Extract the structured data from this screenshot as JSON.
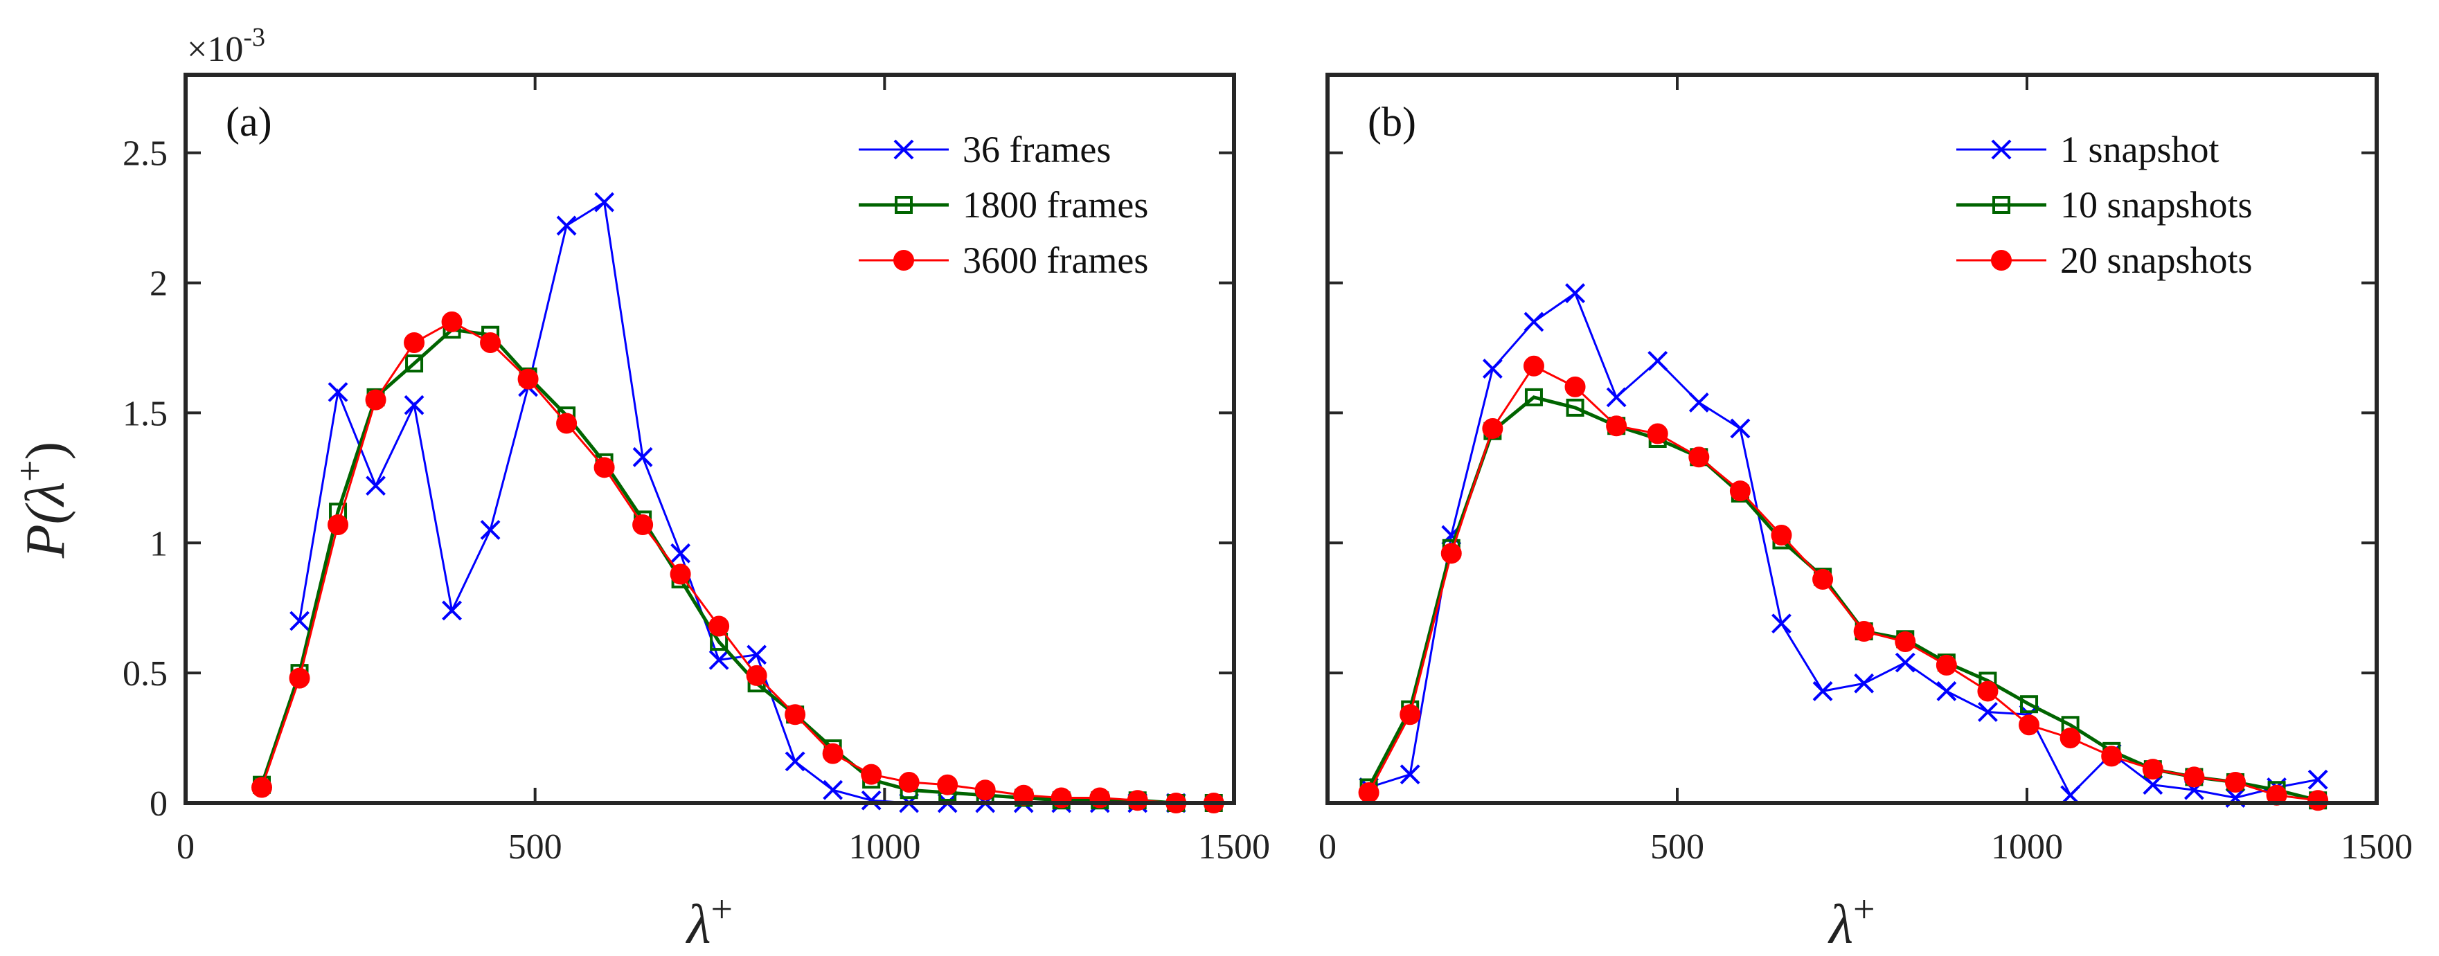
{
  "chart_data": [
    {
      "type": "line",
      "panel_label": "(a)",
      "exponent_label": "×10",
      "exponent_power": "-3",
      "xlabel": "λ",
      "xlabel_sup": "+",
      "ylabel": "P(λ",
      "ylabel_sup": "+",
      "ylabel_close": ")",
      "xlim": [
        0,
        1500
      ],
      "ylim": [
        0,
        2.8
      ],
      "xticks": [
        0,
        500,
        1000,
        1500
      ],
      "xtick_labels": [
        "0",
        "500",
        "1000",
        "1500"
      ],
      "yticks": [
        0,
        0.5,
        1,
        1.5,
        2,
        2.5
      ],
      "ytick_labels": [
        "0",
        "0.5",
        "1",
        "1.5",
        "2",
        "2.5"
      ],
      "y_unit_scale": "1e-3",
      "legend_position": "top-right",
      "series": [
        {
          "name": "36 frames",
          "color": "#0000ff",
          "marker": "x",
          "x": [
            163,
            218,
            272,
            327,
            381,
            436,
            490,
            545,
            599,
            654,
            708,
            763,
            817,
            872,
            926,
            981,
            1035,
            1090,
            1144,
            1199,
            1253,
            1308,
            1362,
            1417
          ],
          "y": [
            0.7,
            1.58,
            1.22,
            1.53,
            0.74,
            1.05,
            1.6,
            2.22,
            2.31,
            1.33,
            0.96,
            0.55,
            0.57,
            0.16,
            0.05,
            0.01,
            0.0,
            0.0,
            0.0,
            0.0,
            0.0,
            0.0,
            0.0,
            0.0
          ]
        },
        {
          "name": "1800 frames",
          "color": "#006400",
          "marker": "square",
          "x": [
            109,
            163,
            218,
            272,
            327,
            381,
            436,
            490,
            545,
            599,
            654,
            708,
            763,
            817,
            872,
            926,
            981,
            1035,
            1090,
            1144,
            1199,
            1253,
            1308,
            1362,
            1417,
            1471
          ],
          "y": [
            0.07,
            0.5,
            1.12,
            1.56,
            1.69,
            1.82,
            1.8,
            1.64,
            1.49,
            1.31,
            1.09,
            0.86,
            0.62,
            0.46,
            0.34,
            0.21,
            0.09,
            0.05,
            0.04,
            0.03,
            0.02,
            0.01,
            0.01,
            0.01,
            0.0,
            0.0
          ]
        },
        {
          "name": "3600 frames",
          "color": "#ff0000",
          "marker": "circle",
          "x": [
            109,
            163,
            218,
            272,
            327,
            381,
            436,
            490,
            545,
            599,
            654,
            708,
            763,
            817,
            872,
            926,
            981,
            1035,
            1090,
            1144,
            1199,
            1253,
            1308,
            1362,
            1417,
            1471
          ],
          "y": [
            0.06,
            0.48,
            1.07,
            1.55,
            1.77,
            1.85,
            1.77,
            1.63,
            1.46,
            1.29,
            1.07,
            0.88,
            0.68,
            0.49,
            0.34,
            0.19,
            0.11,
            0.08,
            0.07,
            0.05,
            0.03,
            0.02,
            0.02,
            0.01,
            0.0,
            0.0
          ]
        }
      ]
    },
    {
      "type": "line",
      "panel_label": "(b)",
      "xlabel": "λ",
      "xlabel_sup": "+",
      "xlim": [
        0,
        1500
      ],
      "ylim": [
        0,
        2.8
      ],
      "xticks": [
        0,
        500,
        1000,
        1500
      ],
      "xtick_labels": [
        "0",
        "500",
        "1000",
        "1500"
      ],
      "yticks": [
        0,
        0.5,
        1,
        1.5,
        2,
        2.5
      ],
      "legend_position": "top-right",
      "series": [
        {
          "name": "1 snapshot",
          "color": "#0000ff",
          "marker": "x",
          "x": [
            59,
            118,
            177,
            236,
            295,
            354,
            413,
            472,
            531,
            590,
            649,
            708,
            767,
            826,
            885,
            944,
            1003,
            1062,
            1121,
            1180,
            1239,
            1298,
            1357,
            1416
          ],
          "y": [
            0.06,
            0.11,
            1.03,
            1.67,
            1.85,
            1.96,
            1.56,
            1.7,
            1.54,
            1.44,
            0.69,
            0.43,
            0.46,
            0.54,
            0.43,
            0.35,
            0.34,
            0.03,
            0.19,
            0.07,
            0.05,
            0.02,
            0.06,
            0.09
          ]
        },
        {
          "name": "10 snapshots",
          "color": "#006400",
          "marker": "square",
          "x": [
            59,
            118,
            177,
            236,
            295,
            354,
            413,
            472,
            531,
            590,
            649,
            708,
            767,
            826,
            885,
            944,
            1003,
            1062,
            1121,
            1180,
            1239,
            1298,
            1357,
            1416
          ],
          "y": [
            0.06,
            0.36,
            0.98,
            1.43,
            1.56,
            1.52,
            1.45,
            1.4,
            1.33,
            1.19,
            1.01,
            0.87,
            0.66,
            0.63,
            0.54,
            0.47,
            0.38,
            0.3,
            0.2,
            0.13,
            0.1,
            0.08,
            0.05,
            0.01
          ]
        },
        {
          "name": "20 snapshots",
          "color": "#ff0000",
          "marker": "circle",
          "x": [
            59,
            118,
            177,
            236,
            295,
            354,
            413,
            472,
            531,
            590,
            649,
            708,
            767,
            826,
            885,
            944,
            1003,
            1062,
            1121,
            1180,
            1239,
            1298,
            1357,
            1416
          ],
          "y": [
            0.04,
            0.34,
            0.96,
            1.44,
            1.68,
            1.6,
            1.45,
            1.42,
            1.33,
            1.2,
            1.03,
            0.86,
            0.66,
            0.62,
            0.53,
            0.43,
            0.3,
            0.25,
            0.18,
            0.13,
            0.1,
            0.08,
            0.03,
            0.01
          ]
        }
      ]
    }
  ]
}
